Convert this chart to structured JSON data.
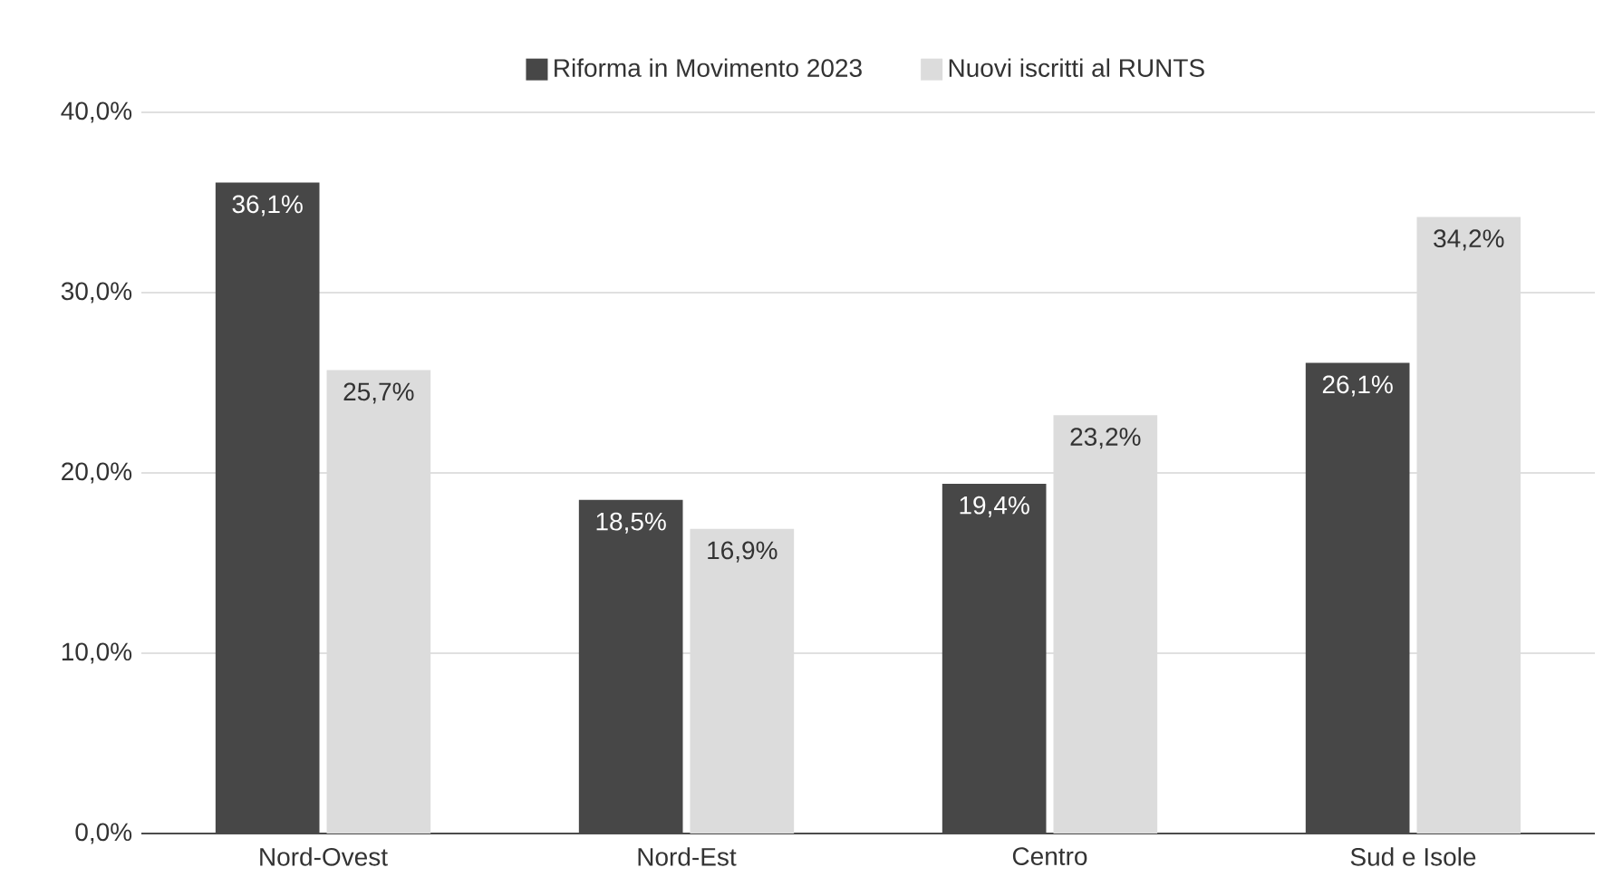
{
  "chart_data": {
    "type": "bar",
    "categories": [
      "Nord-Ovest",
      "Nord-Est",
      "Centro",
      "Sud e Isole"
    ],
    "series": [
      {
        "name": "Riforma in Movimento 2023",
        "color": "#474747",
        "values": [
          36.1,
          18.5,
          19.4,
          26.1
        ],
        "value_labels": [
          "36,1%",
          "18,5%",
          "19,4%",
          "26,1%"
        ]
      },
      {
        "name": "Nuovi iscritti al RUNTS",
        "color": "#dcdcdc",
        "values": [
          25.7,
          16.9,
          23.2,
          34.2
        ],
        "value_labels": [
          "25,7%",
          "16,9%",
          "23,2%",
          "34,2%"
        ]
      }
    ],
    "ylim": [
      0,
      40
    ],
    "yticks": [
      {
        "value": 0,
        "label": "0,0%"
      },
      {
        "value": 10,
        "label": "10,0%"
      },
      {
        "value": 20,
        "label": "20,0%"
      },
      {
        "value": 30,
        "label": "30,0%"
      },
      {
        "value": 40,
        "label": "40,0%"
      }
    ],
    "grid": "y",
    "legend": "top"
  }
}
